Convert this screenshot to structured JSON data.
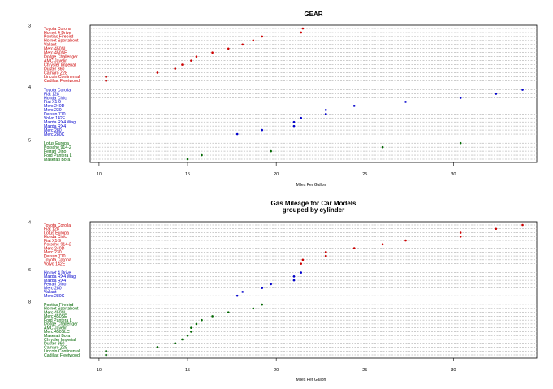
{
  "chart_data": [
    {
      "type": "dot",
      "title": "GEAR",
      "subtitle": "",
      "xlabel": "Miles Per Gallon",
      "ylabel": "",
      "xlim": [
        9.5,
        34.7
      ],
      "x_ticks": [
        10,
        15,
        20,
        25,
        30
      ],
      "grid": "dashed horizontal row lines",
      "groups": [
        {
          "name": "3",
          "color": "#cc0000",
          "rows": [
            {
              "label": "Toyota Corona",
              "value": 21.5
            },
            {
              "label": "Hornet 4 Drive",
              "value": 21.4
            },
            {
              "label": "Pontiac Firebird",
              "value": 19.2
            },
            {
              "label": "Hornet Sportabout",
              "value": 18.7
            },
            {
              "label": "Valiant",
              "value": 18.1
            },
            {
              "label": "Merc 450SL",
              "value": 17.3
            },
            {
              "label": "Merc 450SE",
              "value": 16.4
            },
            {
              "label": "Dodge Challenger",
              "value": 15.5
            },
            {
              "label": "AMC Javelin",
              "value": 15.2
            },
            {
              "label": "Chrysler Imperial",
              "value": 14.7
            },
            {
              "label": "Duster 360",
              "value": 14.3
            },
            {
              "label": "Camaro Z28",
              "value": 13.3
            },
            {
              "label": "Lincoln Continental",
              "value": 10.4
            },
            {
              "label": "Cadillac Fleetwood",
              "value": 10.4
            }
          ]
        },
        {
          "name": "4",
          "color": "#0000cc",
          "rows": [
            {
              "label": "Toyota Corolla",
              "value": 33.9
            },
            {
              "label": "Fiat 128",
              "value": 32.4
            },
            {
              "label": "Honda Civic",
              "value": 30.4
            },
            {
              "label": "Fiat X1-9",
              "value": 27.3
            },
            {
              "label": "Merc 240D",
              "value": 24.4
            },
            {
              "label": "Merc 230",
              "value": 22.8
            },
            {
              "label": "Datsun 710",
              "value": 22.8
            },
            {
              "label": "Volvo 142E",
              "value": 21.4
            },
            {
              "label": "Mazda RX4 Wag",
              "value": 21.0
            },
            {
              "label": "Mazda RX4",
              "value": 21.0
            },
            {
              "label": "Merc 280",
              "value": 19.2
            },
            {
              "label": "Merc 280C",
              "value": 17.8
            }
          ]
        },
        {
          "name": "5",
          "color": "#006600",
          "rows": [
            {
              "label": "Lotus Europa",
              "value": 30.4
            },
            {
              "label": "Porsche 914-2",
              "value": 26.0
            },
            {
              "label": "Ferrari Dino",
              "value": 19.7
            },
            {
              "label": "Ford Pantera L",
              "value": 15.8
            },
            {
              "label": "Maserati Bora",
              "value": 15.0
            }
          ]
        }
      ]
    },
    {
      "type": "dot",
      "title": "Gas Mileage for Car Models",
      "subtitle": "grouped by cylinder",
      "xlabel": "Miles Per Gallon",
      "ylabel": "",
      "xlim": [
        9.5,
        34.7
      ],
      "x_ticks": [
        10,
        15,
        20,
        25,
        30
      ],
      "grid": "dashed horizontal row lines",
      "groups": [
        {
          "name": "4",
          "color": "#cc0000",
          "rows": [
            {
              "label": "Toyota Corolla",
              "value": 33.9
            },
            {
              "label": "Fiat 128",
              "value": 32.4
            },
            {
              "label": "Lotus Europa",
              "value": 30.4
            },
            {
              "label": "Honda Civic",
              "value": 30.4
            },
            {
              "label": "Fiat X1-9",
              "value": 27.3
            },
            {
              "label": "Porsche 914-2",
              "value": 26.0
            },
            {
              "label": "Merc 240D",
              "value": 24.4
            },
            {
              "label": "Merc 230",
              "value": 22.8
            },
            {
              "label": "Datsun 710",
              "value": 22.8
            },
            {
              "label": "Toyota Corona",
              "value": 21.5
            },
            {
              "label": "Volvo 142E",
              "value": 21.4
            }
          ]
        },
        {
          "name": "6",
          "color": "#0000cc",
          "rows": [
            {
              "label": "Hornet 4 Drive",
              "value": 21.4
            },
            {
              "label": "Mazda RX4 Wag",
              "value": 21.0
            },
            {
              "label": "Mazda RX4",
              "value": 21.0
            },
            {
              "label": "Ferrari Dino",
              "value": 19.7
            },
            {
              "label": "Merc 280",
              "value": 19.2
            },
            {
              "label": "Valiant",
              "value": 18.1
            },
            {
              "label": "Merc 280C",
              "value": 17.8
            }
          ]
        },
        {
          "name": "8",
          "color": "#006600",
          "rows": [
            {
              "label": "Pontiac Firebird",
              "value": 19.2
            },
            {
              "label": "Hornet Sportabout",
              "value": 18.7
            },
            {
              "label": "Merc 450SL",
              "value": 17.3
            },
            {
              "label": "Merc 450SE",
              "value": 16.4
            },
            {
              "label": "Ford Pantera L",
              "value": 15.8
            },
            {
              "label": "Dodge Challenger",
              "value": 15.5
            },
            {
              "label": "AMC Javelin",
              "value": 15.2
            },
            {
              "label": "Merc 450SLC",
              "value": 15.2
            },
            {
              "label": "Maserati Bora",
              "value": 15.0
            },
            {
              "label": "Chrysler Imperial",
              "value": 14.7
            },
            {
              "label": "Duster 360",
              "value": 14.3
            },
            {
              "label": "Camaro Z28",
              "value": 13.3
            },
            {
              "label": "Lincoln Continental",
              "value": 10.4
            },
            {
              "label": "Cadillac Fleetwood",
              "value": 10.4
            }
          ]
        }
      ]
    }
  ]
}
